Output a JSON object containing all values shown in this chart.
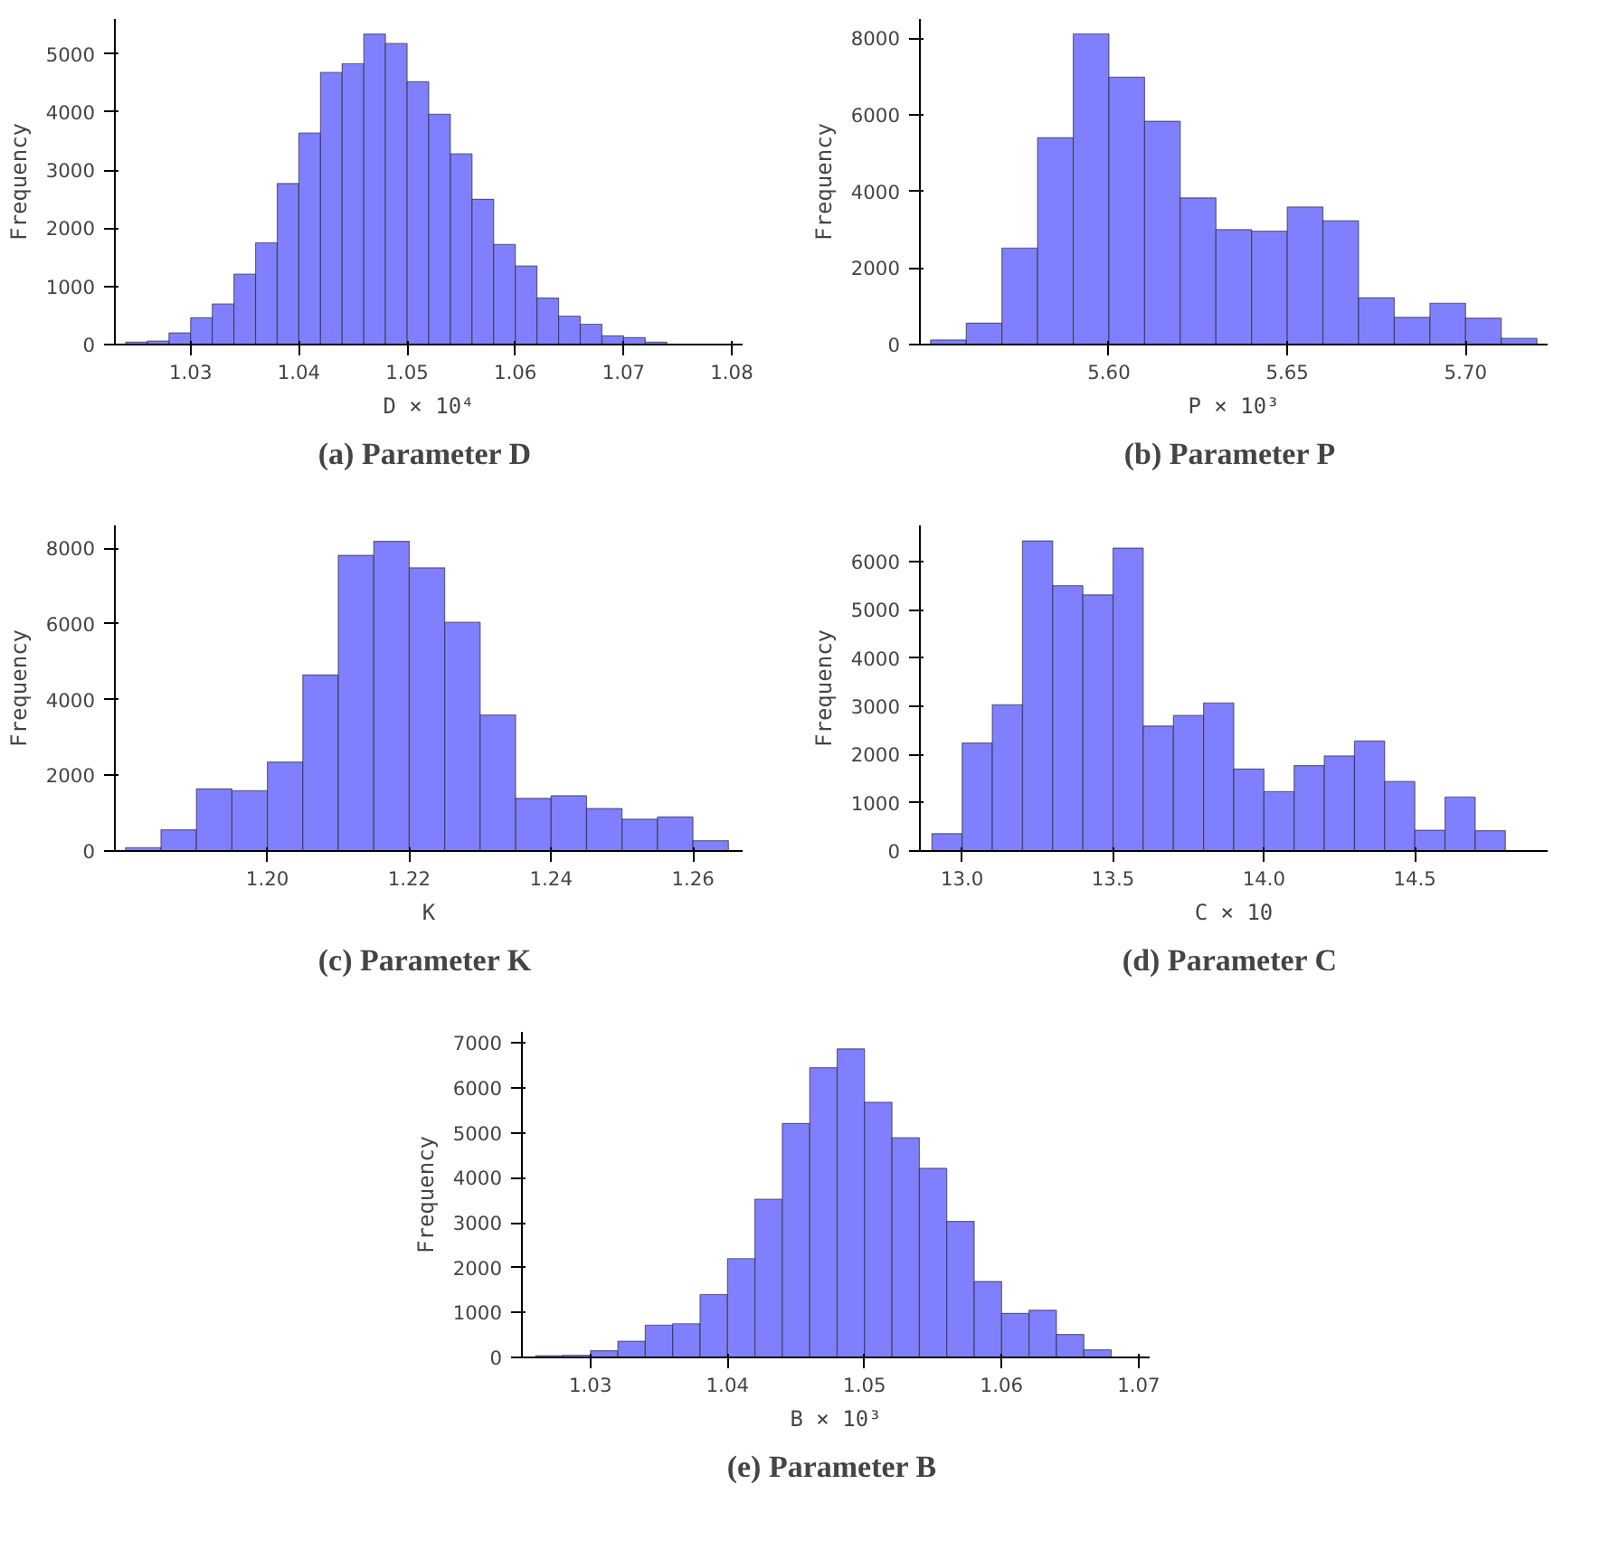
{
  "chart_data": [
    {
      "type": "histogram",
      "title": "(a)  Parameter D",
      "xlabel": "D × 10⁴",
      "ylabel": "Frequency",
      "color": "#8080ff",
      "bins": [
        1.024,
        1.026,
        1.028,
        1.03,
        1.032,
        1.034,
        1.036,
        1.038,
        1.04,
        1.042,
        1.044,
        1.046,
        1.048,
        1.05,
        1.052,
        1.054,
        1.056,
        1.058,
        1.06,
        1.062,
        1.064,
        1.066,
        1.068,
        1.07,
        1.072,
        1.074
      ],
      "values": [
        40,
        60,
        200,
        460,
        700,
        1210,
        1750,
        2770,
        3640,
        4680,
        4830,
        5340,
        5180,
        4520,
        3960,
        3280,
        2500,
        1720,
        1350,
        800,
        490,
        350,
        150,
        120,
        40
      ],
      "xlim": [
        1.023,
        1.081
      ],
      "xticks": [
        1.03,
        1.04,
        1.05,
        1.06,
        1.07,
        1.08
      ],
      "ylim": [
        0,
        5600
      ],
      "yticks": [
        0,
        1000,
        2000,
        3000,
        4000,
        5000
      ]
    },
    {
      "type": "histogram",
      "title": "(b)  Parameter P",
      "xlabel": "P × 10³",
      "ylabel": "Frequency",
      "color": "#8080ff",
      "bins": [
        5.55,
        5.56,
        5.57,
        5.58,
        5.59,
        5.6,
        5.61,
        5.62,
        5.63,
        5.64,
        5.65,
        5.66,
        5.67,
        5.68,
        5.69,
        5.7,
        5.71,
        5.72
      ],
      "values": [
        120,
        560,
        2520,
        5400,
        8110,
        6980,
        5830,
        3830,
        3000,
        2960,
        3590,
        3230,
        1220,
        710,
        1080,
        690,
        160
      ],
      "xlim": [
        5.547,
        5.723
      ],
      "xticks": [
        {
          "value": 5.6,
          "label": "5.60"
        },
        5.65,
        {
          "value": 5.7,
          "label": "5.70"
        }
      ],
      "ylim": [
        0,
        8500
      ],
      "yticks": [
        0,
        2000,
        4000,
        6000,
        8000
      ]
    },
    {
      "type": "histogram",
      "title": "(c)  Parameter K",
      "xlabel": "K",
      "ylabel": "Frequency",
      "color": "#8080ff",
      "bins": [
        1.18,
        1.185,
        1.19,
        1.195,
        1.2,
        1.205,
        1.21,
        1.215,
        1.22,
        1.225,
        1.23,
        1.235,
        1.24,
        1.245,
        1.25,
        1.255,
        1.26,
        1.265
      ],
      "values": [
        90,
        560,
        1640,
        1590,
        2350,
        4650,
        7810,
        8180,
        7480,
        6040,
        3590,
        1390,
        1460,
        1120,
        840,
        900,
        270
      ],
      "xlim": [
        1.1785,
        1.267
      ],
      "xticks": [
        {
          "value": 1.2,
          "label": "1.20"
        },
        1.22,
        1.24,
        1.26
      ],
      "ylim": [
        0,
        8600
      ],
      "yticks": [
        0,
        2000,
        4000,
        6000,
        8000
      ]
    },
    {
      "type": "histogram",
      "title": "(d)  Parameter C",
      "xlabel": "C × 10",
      "ylabel": "Frequency",
      "color": "#8080ff",
      "bins": [
        12.9,
        13.0,
        13.1,
        13.2,
        13.3,
        13.4,
        13.5,
        13.6,
        13.7,
        13.8,
        13.9,
        14.0,
        14.1,
        14.2,
        14.3,
        14.4,
        14.5,
        14.6,
        14.7,
        14.8
      ],
      "values": [
        360,
        2240,
        3030,
        6430,
        5500,
        5310,
        6280,
        2590,
        2810,
        3070,
        1700,
        1230,
        1770,
        1970,
        2280,
        1440,
        430,
        1120,
        420
      ],
      "xlim": [
        12.86,
        14.94
      ],
      "xticks": [
        {
          "value": 13.0,
          "label": "13.0"
        },
        13.5,
        {
          "value": 14.0,
          "label": "14.0"
        },
        14.5
      ],
      "ylim": [
        0,
        6750
      ],
      "yticks": [
        0,
        1000,
        2000,
        3000,
        4000,
        5000,
        6000
      ]
    },
    {
      "type": "histogram",
      "title": "(e)  Parameter B",
      "xlabel": "B × 10³",
      "ylabel": "Frequency",
      "color": "#8080ff",
      "bins": [
        1.026,
        1.028,
        1.03,
        1.032,
        1.034,
        1.036,
        1.038,
        1.04,
        1.042,
        1.044,
        1.046,
        1.048,
        1.05,
        1.052,
        1.054,
        1.056,
        1.058,
        1.06,
        1.062,
        1.064,
        1.066,
        1.068
      ],
      "values": [
        40,
        50,
        150,
        360,
        720,
        750,
        1400,
        2200,
        3520,
        5210,
        6450,
        6870,
        5680,
        4890,
        4210,
        3030,
        1690,
        980,
        1050,
        510,
        170
      ],
      "xlim": [
        1.025,
        1.0708
      ],
      "xticks": [
        1.03,
        1.04,
        1.05,
        1.06,
        1.07
      ],
      "ylim": [
        0,
        7250
      ],
      "yticks": [
        0,
        1000,
        2000,
        3000,
        4000,
        5000,
        6000,
        7000
      ]
    }
  ]
}
